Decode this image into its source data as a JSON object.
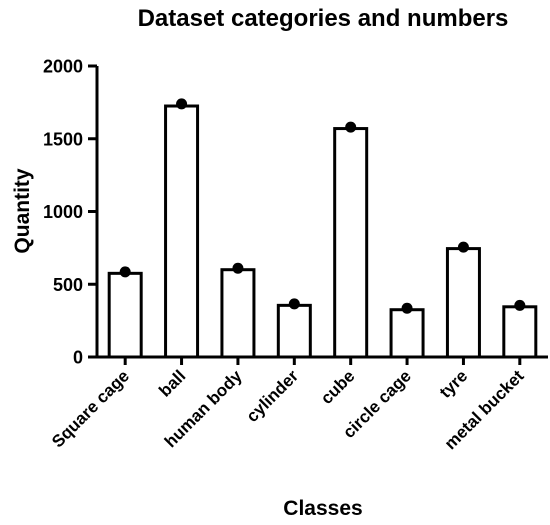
{
  "chart_data": {
    "type": "bar",
    "title": "Dataset categories and numbers",
    "xlabel": "Classes",
    "ylabel": "Quantity",
    "ylim": [
      0,
      2000
    ],
    "yticks": [
      "0",
      "500",
      "1000",
      "1500",
      "2000"
    ],
    "categories": [
      "Square cage",
      "ball",
      "human body",
      "cylinder",
      "cube",
      "circle cage",
      "tyre",
      "metal bucket"
    ],
    "values": [
      575,
      1725,
      600,
      355,
      1570,
      325,
      745,
      345
    ],
    "points": [
      585,
      1740,
      610,
      365,
      1580,
      335,
      755,
      355
    ],
    "grid": false,
    "legend": "none"
  }
}
